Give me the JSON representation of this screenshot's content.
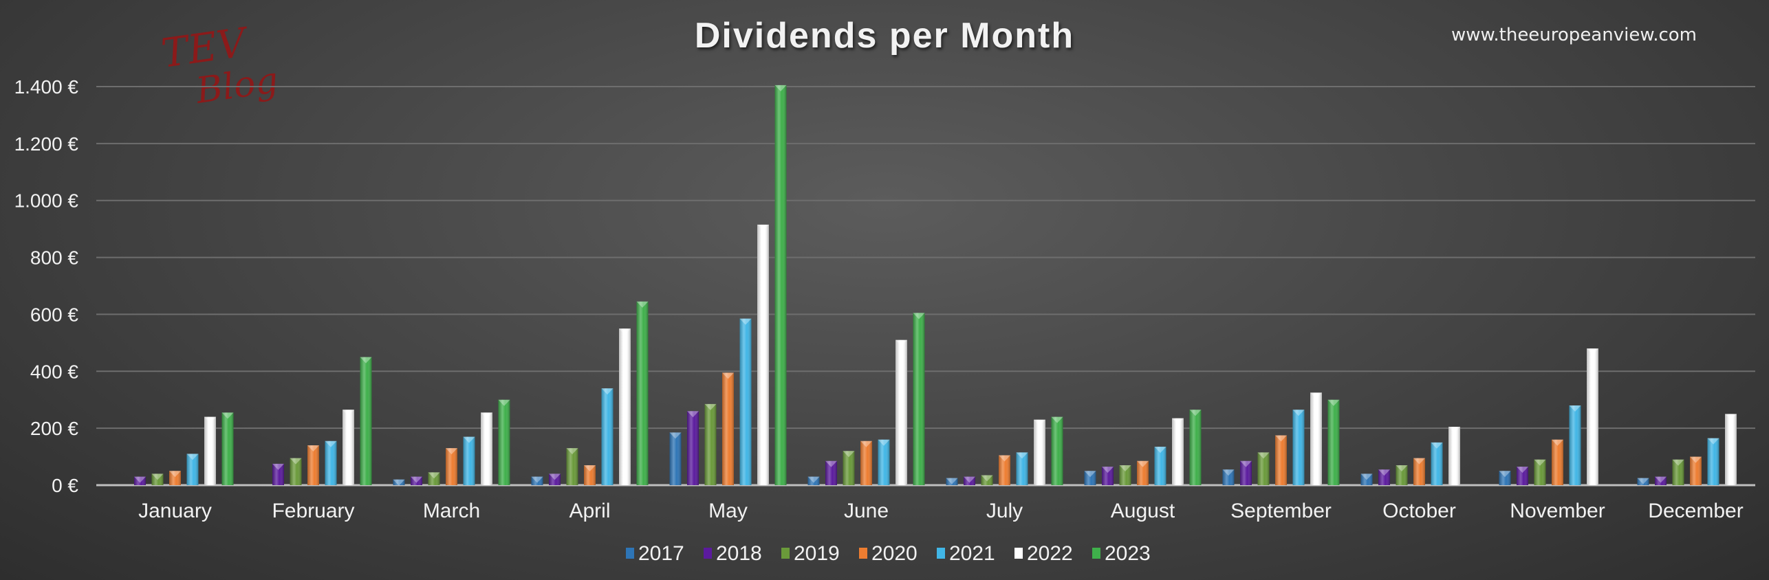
{
  "header": {
    "title": "Dividends per Month",
    "site": "www.theeuropeanview.com",
    "logo_text": [
      "TEV",
      "Blog"
    ]
  },
  "chart_data": {
    "type": "bar",
    "title": "Dividends per Month",
    "xlabel": "",
    "ylabel": "",
    "ylim": [
      0,
      1400
    ],
    "yticks": [
      0,
      200,
      400,
      600,
      800,
      1000,
      1200,
      1400
    ],
    "ytick_labels": [
      "0 €",
      "200 €",
      "400 €",
      "600 €",
      "800 €",
      "1.000 €",
      "1.200 €",
      "1.400 €"
    ],
    "grid": true,
    "legend_position": "bottom",
    "categories": [
      "January",
      "February",
      "March",
      "April",
      "May",
      "June",
      "July",
      "August",
      "September",
      "October",
      "November",
      "December"
    ],
    "series": [
      {
        "name": "2017",
        "color": "#2e75b6",
        "values": [
          0,
          0,
          20,
          30,
          185,
          30,
          25,
          50,
          55,
          40,
          50,
          25
        ]
      },
      {
        "name": "2018",
        "color": "#5b1b9e",
        "values": [
          30,
          75,
          30,
          40,
          260,
          85,
          30,
          65,
          85,
          55,
          65,
          30
        ]
      },
      {
        "name": "2019",
        "color": "#6a9a3a",
        "values": [
          40,
          95,
          45,
          130,
          285,
          120,
          35,
          70,
          115,
          70,
          90,
          90
        ]
      },
      {
        "name": "2020",
        "color": "#ed7d31",
        "values": [
          50,
          140,
          130,
          70,
          395,
          155,
          105,
          85,
          175,
          95,
          160,
          100
        ]
      },
      {
        "name": "2021",
        "color": "#41b6e6",
        "values": [
          110,
          155,
          170,
          340,
          585,
          160,
          115,
          135,
          265,
          150,
          280,
          165
        ]
      },
      {
        "name": "2022",
        "color": "#ffffff",
        "values": [
          240,
          265,
          255,
          550,
          915,
          510,
          230,
          235,
          325,
          205,
          480,
          250
        ]
      },
      {
        "name": "2023",
        "color": "#3fb04b",
        "values": [
          255,
          450,
          300,
          645,
          1405,
          605,
          240,
          265,
          300,
          0,
          0,
          0
        ]
      }
    ]
  }
}
